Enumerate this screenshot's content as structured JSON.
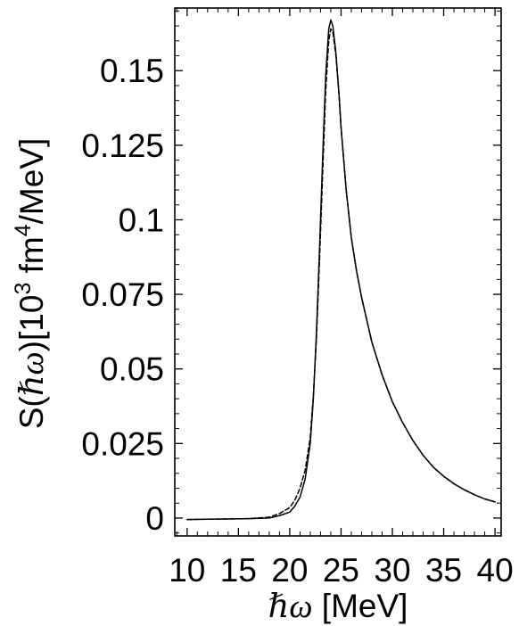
{
  "chart_data": {
    "type": "line",
    "title": "",
    "xlabel": {
      "symbol": "ℏω",
      "unit": " [MeV]"
    },
    "ylabel": {
      "prefix": "S(",
      "symbol": "ℏω",
      "middle": ")[10",
      "exp1": "3",
      "middle2": " fm",
      "exp2": "4",
      "suffix": "/MeV]"
    },
    "xlim": [
      8.8,
      40.6
    ],
    "ylim": [
      -0.006,
      0.171
    ],
    "x_ticks": [
      10,
      15,
      20,
      25,
      30,
      35,
      40
    ],
    "x_tick_labels": [
      "10",
      "15",
      "20",
      "25",
      "30",
      "35",
      "40"
    ],
    "y_ticks": [
      0,
      0.025,
      0.05,
      0.075,
      0.1,
      0.125,
      0.15
    ],
    "y_tick_labels": [
      "0",
      "0.025",
      "0.05",
      "0.075",
      "0.1",
      "0.125",
      "0.15"
    ],
    "grid": false,
    "series": [
      {
        "style": "solid",
        "x": [
          10,
          12,
          14,
          16,
          18,
          19,
          20,
          20.5,
          21,
          21.5,
          22,
          22.3,
          22.6,
          22.9,
          23.2,
          23.5,
          23.8,
          24,
          24.2,
          24.5,
          24.8,
          25,
          25.5,
          26,
          26.5,
          27,
          28,
          29,
          30,
          31,
          32,
          33,
          34,
          35,
          36,
          37,
          38,
          39,
          40
        ],
        "y": [
          -0.0005,
          -0.0004,
          -0.0003,
          -0.0002,
          0.0,
          0.0008,
          0.002,
          0.004,
          0.007,
          0.013,
          0.025,
          0.04,
          0.062,
          0.09,
          0.12,
          0.148,
          0.164,
          0.167,
          0.165,
          0.156,
          0.142,
          0.131,
          0.11,
          0.094,
          0.083,
          0.074,
          0.059,
          0.048,
          0.039,
          0.032,
          0.026,
          0.021,
          0.017,
          0.014,
          0.0115,
          0.0095,
          0.0078,
          0.0064,
          0.0054
        ]
      },
      {
        "style": "dashed",
        "x": [
          10,
          12,
          14,
          16,
          18,
          19,
          20,
          20.5,
          21,
          21.5,
          22,
          22.3,
          22.6,
          22.9,
          23.2,
          23.5,
          23.8,
          24,
          24.2,
          24.5,
          24.8,
          25,
          25.5,
          26,
          26.5,
          27,
          28,
          29,
          30,
          31,
          32,
          33,
          34,
          35,
          36,
          37,
          38,
          39,
          40
        ],
        "y": [
          -0.0005,
          -0.0004,
          -0.0003,
          -0.0002,
          0.0003,
          0.0015,
          0.0035,
          0.006,
          0.01,
          0.016,
          0.027,
          0.041,
          0.06,
          0.086,
          0.115,
          0.143,
          0.16,
          0.164,
          0.163,
          0.155,
          0.142,
          0.131,
          0.11,
          0.094,
          0.083,
          0.074,
          0.059,
          0.048,
          0.039,
          0.032,
          0.026,
          0.021,
          0.017,
          0.014,
          0.0115,
          0.0095,
          0.0078,
          0.0064,
          0.0054
        ]
      }
    ]
  }
}
